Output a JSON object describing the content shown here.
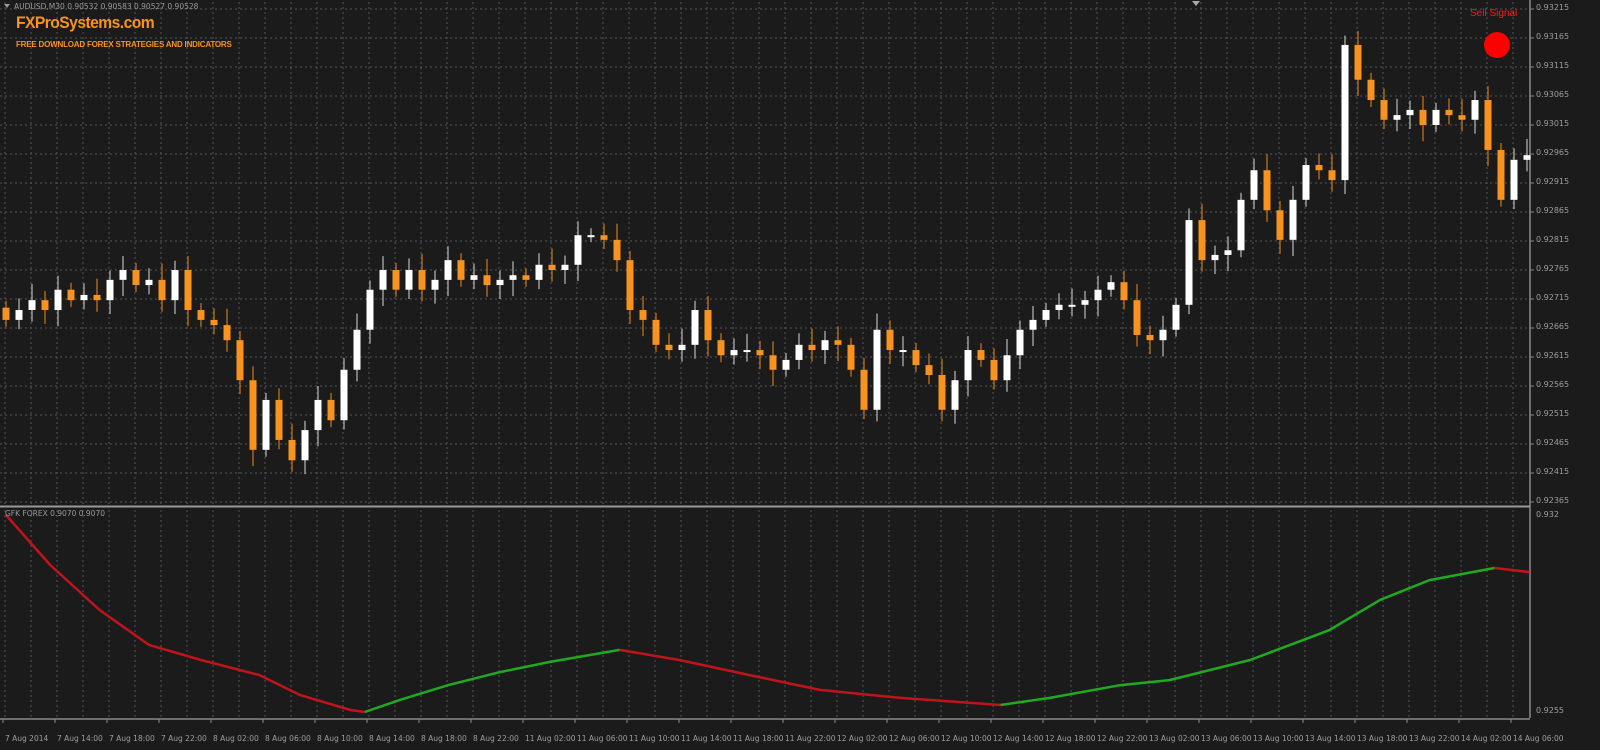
{
  "header": {
    "symbol_info": "AUDUSD,M30  0.90532 0.90583 0.90527 0.90528"
  },
  "branding": {
    "logo": "FXProSystems.com",
    "tagline": "FREE DOWNLOAD FOREX STRATEGIES AND INDICATORS"
  },
  "signal": {
    "label": "Sell Signal",
    "color": "#ff0000"
  },
  "indicator": {
    "label": "GFK FOREX 0.9070 0.9070"
  },
  "colors": {
    "background": "#1b1b1c",
    "grid": "#50555c",
    "bull": "#ffffff",
    "bear": "#f7931e",
    "up_trend": "#1faa1f",
    "down_trend": "#c0141c"
  },
  "chart_data": [
    {
      "type": "candlestick",
      "title": "",
      "price_axis_labels": [
        "0.93215",
        "0.93165",
        "0.93115",
        "0.93065",
        "0.93015",
        "0.92965",
        "0.92915",
        "0.92865",
        "0.92815",
        "0.92765",
        "0.92715",
        "0.92665",
        "0.92615",
        "0.92565",
        "0.92515",
        "0.92465",
        "0.92415",
        "0.92365"
      ],
      "ylim": [
        0.9235,
        0.9323
      ],
      "grid": true,
      "time_axis_labels": [
        "7 Aug 2014",
        "7 Aug 14:00",
        "7 Aug 18:00",
        "7 Aug 22:00",
        "8 Aug 02:00",
        "8 Aug 06:00",
        "8 Aug 10:00",
        "8 Aug 14:00",
        "8 Aug 18:00",
        "8 Aug 22:00",
        "11 Aug 02:00",
        "11 Aug 06:00",
        "11 Aug 10:00",
        "11 Aug 14:00",
        "11 Aug 18:00",
        "11 Aug 22:00",
        "12 Aug 02:00",
        "12 Aug 06:00",
        "12 Aug 10:00",
        "12 Aug 14:00",
        "12 Aug 18:00",
        "12 Aug 22:00",
        "13 Aug 02:00",
        "13 Aug 06:00",
        "13 Aug 10:00",
        "13 Aug 14:00",
        "13 Aug 18:00",
        "13 Aug 22:00",
        "14 Aug 02:00",
        "14 Aug 06:00"
      ],
      "first_open": 0.927,
      "closes": [
        0.92679,
        0.92696,
        0.92713,
        0.92696,
        0.92731,
        0.92713,
        0.92722,
        0.92713,
        0.92748,
        0.92765,
        0.92739,
        0.92748,
        0.92713,
        0.92765,
        0.92696,
        0.92679,
        0.9267,
        0.92644,
        0.92575,
        0.92455,
        0.92541,
        0.92472,
        0.92437,
        0.92489,
        0.92541,
        0.92506,
        0.92593,
        0.92662,
        0.92731,
        0.92765,
        0.92731,
        0.92765,
        0.92731,
        0.92748,
        0.92782,
        0.92748,
        0.92756,
        0.92739,
        0.92748,
        0.92756,
        0.92748,
        0.92774,
        0.92765,
        0.92774,
        0.92825,
        0.92825,
        0.92817,
        0.92782,
        0.92696,
        0.92679,
        0.92636,
        0.92627,
        0.92636,
        0.92696,
        0.92644,
        0.92618,
        0.92627,
        0.92627,
        0.92618,
        0.92593,
        0.9261,
        0.92636,
        0.92627,
        0.92644,
        0.92636,
        0.92593,
        0.92524,
        0.92662,
        0.92627,
        0.92627,
        0.92601,
        0.92584,
        0.92524,
        0.92575,
        0.92627,
        0.9261,
        0.92575,
        0.92618,
        0.92662,
        0.92679,
        0.92696,
        0.92705,
        0.92705,
        0.92713,
        0.92731,
        0.92744,
        0.92713,
        0.92653,
        0.92644,
        0.92662,
        0.92705,
        0.92851,
        0.92782,
        0.92791,
        0.92799,
        0.92886,
        0.92937,
        0.92868,
        0.92817,
        0.92886,
        0.92946,
        0.92937,
        0.9292,
        0.93153,
        0.93093,
        0.93058,
        0.93024,
        0.93032,
        0.93041,
        0.93015,
        0.93041,
        0.93032,
        0.93024,
        0.93058,
        0.92972,
        0.92886,
        0.92955,
        0.92963
      ]
    },
    {
      "type": "line",
      "title": "",
      "axis_labels": [
        "0.932",
        "0.9255"
      ],
      "ylim": [
        0.9255,
        0.932
      ],
      "segments": [
        {
          "trend": "down",
          "points": [
            [
              0,
              0.93191
            ],
            [
              3.4,
              0.93042
            ],
            [
              7.2,
              0.92908
            ],
            [
              11,
              0.92804
            ],
            [
              15,
              0.92759
            ],
            [
              19.5,
              0.92714
            ],
            [
              22.6,
              0.92655
            ],
            [
              26.5,
              0.9261
            ],
            [
              27.6,
              0.92604
            ]
          ]
        },
        {
          "trend": "up",
          "points": [
            [
              27.6,
              0.92604
            ],
            [
              30.3,
              0.9264
            ],
            [
              34,
              0.92684
            ],
            [
              38,
              0.92723
            ],
            [
              41.8,
              0.92753
            ],
            [
              47.2,
              0.92789
            ]
          ]
        },
        {
          "trend": "down",
          "points": [
            [
              47.2,
              0.92789
            ],
            [
              51.8,
              0.92759
            ],
            [
              57.2,
              0.92714
            ],
            [
              62.6,
              0.9267
            ],
            [
              68.8,
              0.92646
            ],
            [
              76.5,
              0.92625
            ]
          ]
        },
        {
          "trend": "up",
          "points": [
            [
              76.5,
              0.92625
            ],
            [
              80.3,
              0.92646
            ],
            [
              85.7,
              0.92684
            ],
            [
              89.5,
              0.92699
            ],
            [
              95.7,
              0.92759
            ],
            [
              101.8,
              0.92848
            ],
            [
              105.7,
              0.92938
            ],
            [
              109.5,
              0.92997
            ],
            [
              114.5,
              0.93033
            ]
          ]
        },
        {
          "trend": "down",
          "points": [
            [
              114.5,
              0.93033
            ],
            [
              117.2,
              0.93021
            ]
          ]
        }
      ]
    }
  ]
}
